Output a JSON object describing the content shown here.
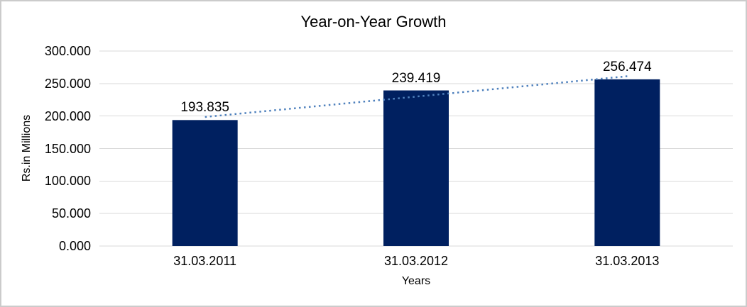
{
  "chart_data": {
    "type": "bar",
    "title": "Year-on-Year Growth",
    "xlabel": "Years",
    "ylabel": "Rs.in Millions",
    "categories": [
      "31.03.2011",
      "31.03.2012",
      "31.03.2013"
    ],
    "values": [
      193.835,
      239.419,
      256.474
    ],
    "data_labels": [
      "193.835",
      "239.419",
      "256.474"
    ],
    "ylim": [
      0,
      300
    ],
    "ytick_step": 50,
    "ytick_labels": [
      "0.000",
      "50.000",
      "100.000",
      "150.000",
      "200.000",
      "250.000",
      "300.000"
    ],
    "grid": true,
    "legend": false,
    "trendline": {
      "type": "linear",
      "style": "dotted"
    },
    "colors": {
      "bar": "#002060",
      "trendline": "#4f81bd",
      "gridline": "#d9d9d9",
      "text": "#000000",
      "frame_border": "#cbcbcb"
    }
  }
}
